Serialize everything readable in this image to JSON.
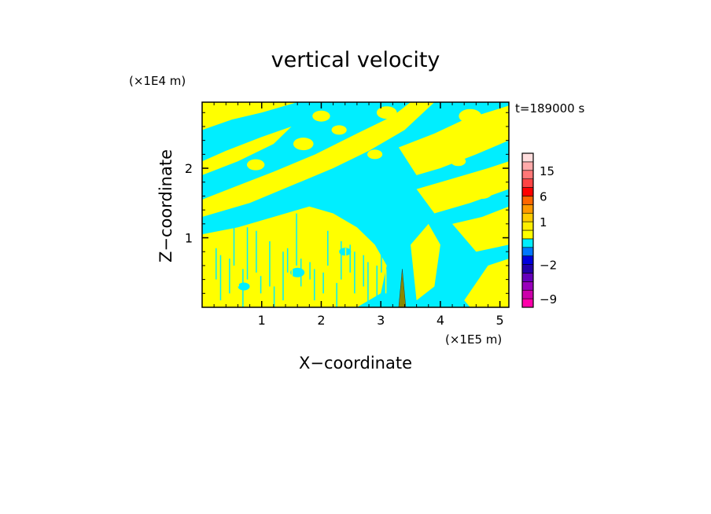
{
  "chart_data": {
    "type": "heatmap",
    "title": "vertical velocity",
    "xlabel": "X−coordinate",
    "ylabel": "Z−coordinate",
    "x_unit": "(×1E5 m)",
    "y_unit": "(×1E4 m)",
    "time_label": "t=189000 s",
    "xlim": [
      0,
      5.15
    ],
    "ylim": [
      0,
      2.95
    ],
    "x_ticks": [
      1,
      2,
      3,
      4,
      5
    ],
    "x_tick_labels": [
      "1",
      "2",
      "3",
      "4",
      "5"
    ],
    "y_ticks": [
      1,
      2
    ],
    "y_tick_labels": [
      "1",
      "2"
    ],
    "field_colors": {
      "updraft": "#ffff00",
      "downdraft": "#00eeff"
    },
    "colorbar": {
      "levels": [
        -12,
        -9,
        -6,
        -4,
        -3,
        -2,
        -1,
        -0.5,
        0,
        0.5,
        1,
        2,
        3,
        6,
        9,
        12,
        15,
        18,
        25
      ],
      "colors": [
        "#ff00aa",
        "#cc00aa",
        "#9900bb",
        "#6600bb",
        "#2200aa",
        "#0000dd",
        "#0077ff",
        "#00eeff",
        "#ffff00",
        "#ffee00",
        "#ffcc00",
        "#ff9900",
        "#ff6600",
        "#ff0000",
        "#ff4444",
        "#ff7777",
        "#ffaaaa",
        "#ffdddd"
      ],
      "tick_values": [
        -9,
        -2,
        1,
        6,
        15
      ],
      "tick_labels": [
        "−9",
        "−2",
        "1",
        "6",
        "15"
      ]
    }
  }
}
